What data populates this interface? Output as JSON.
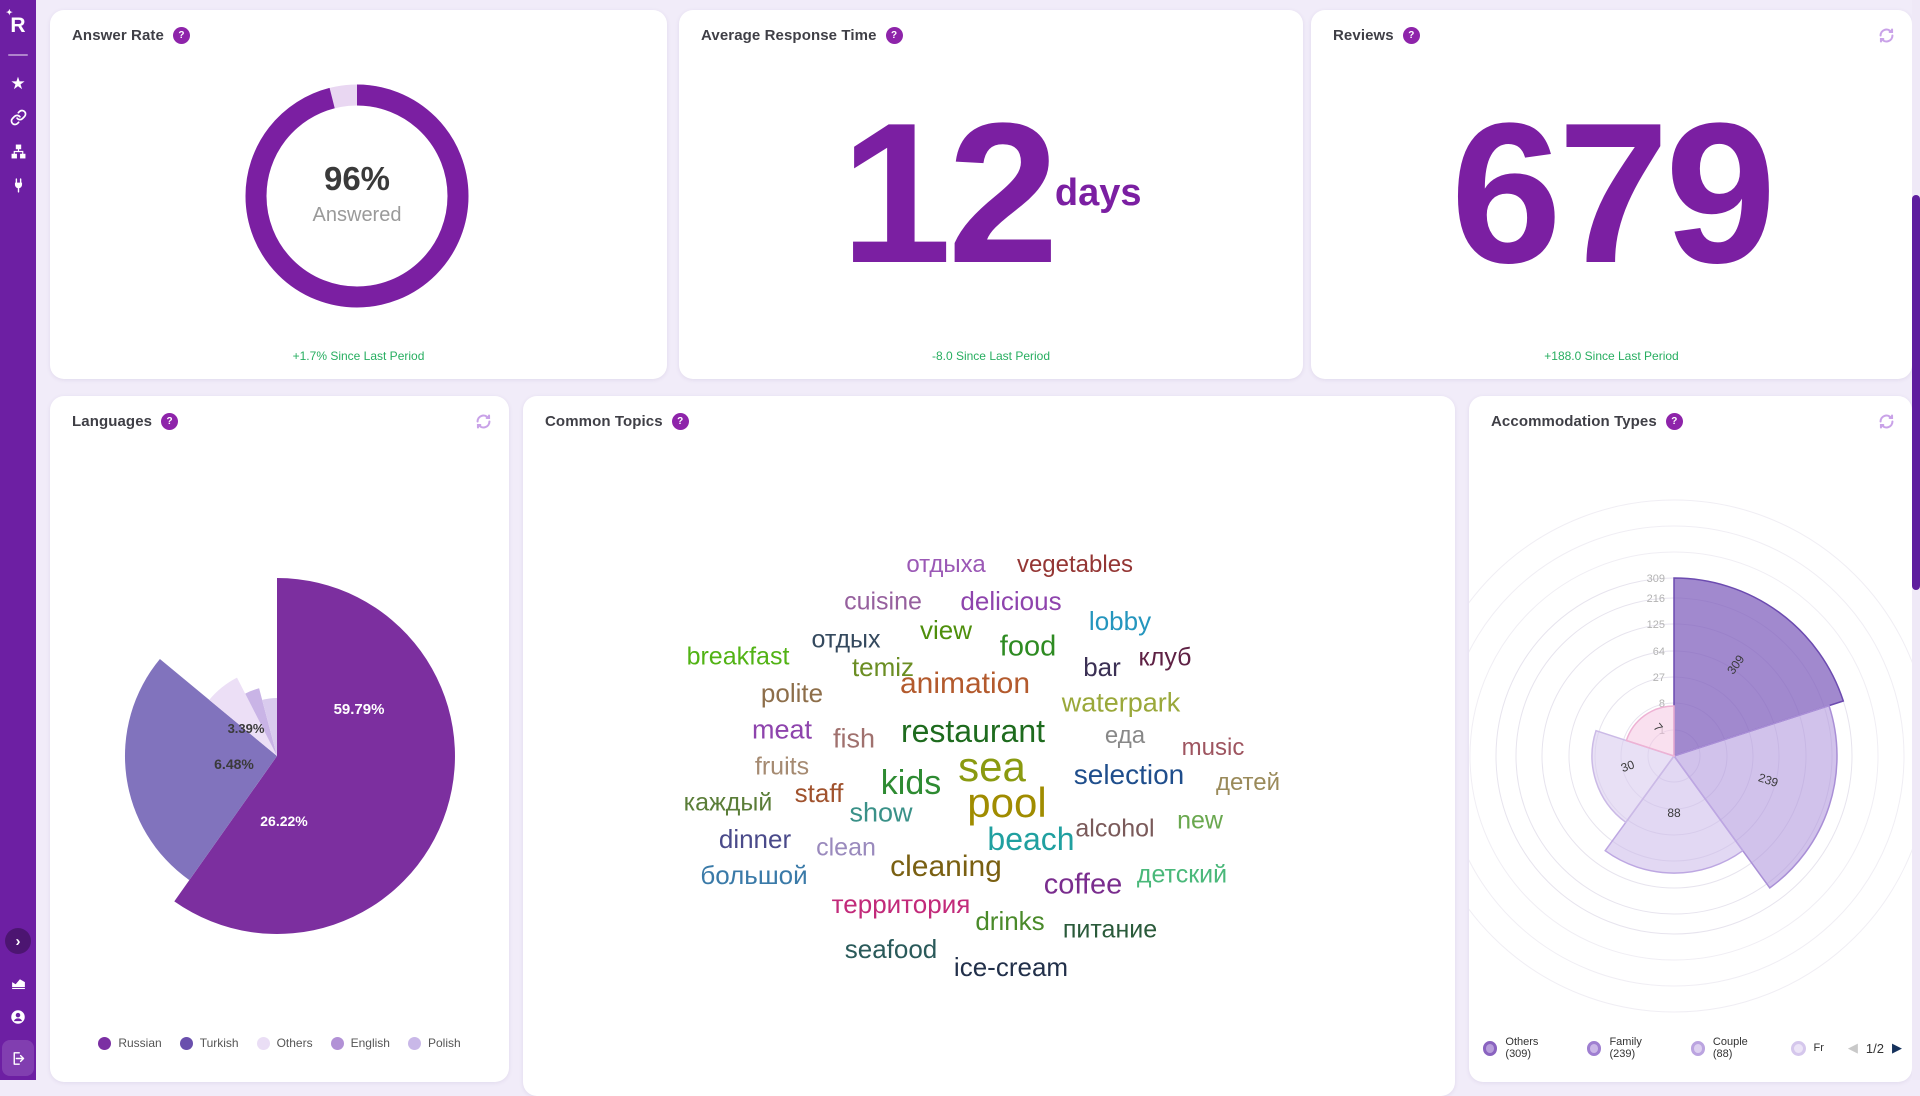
{
  "colors": {
    "accent": "#7b1fa2",
    "sidebar": "#6d1fa3",
    "positive_delta": "#27ae60",
    "page_bg": "#f1ecf9",
    "help_badge": "#8e24aa",
    "refresh_icon": "#c9a2e8",
    "scroll_thumb": "#5e1d9e"
  },
  "ui": {
    "help_glyph": "?",
    "collapse_glyph": "›",
    "prev_glyph": "◀",
    "next_glyph": "▶"
  },
  "sidebar": {
    "icons": [
      "star-icon",
      "link-icon",
      "sitemap-icon",
      "plug-icon"
    ],
    "bottom_icons": [
      "collapse-chevron-icon",
      "area-chart-icon",
      "user-icon",
      "sign-out-icon"
    ]
  },
  "cards": {
    "answer_rate": {
      "title": "Answer Rate",
      "center_value": "96%",
      "center_label": "Answered",
      "delta": "+1.7% Since Last Period"
    },
    "average_response_time": {
      "title": "Average Response Time",
      "value": "12",
      "unit": "days",
      "delta": "-8.0 Since Last Period"
    },
    "reviews": {
      "title": "Reviews",
      "value": "679",
      "delta": "+188.0 Since Last Period"
    },
    "languages": {
      "title": "Languages",
      "legend": [
        {
          "label": "Russian",
          "color": "#7b2fa3"
        },
        {
          "label": "Turkish",
          "color": "#6a4fad"
        },
        {
          "label": "Others",
          "color": "#eadef5"
        },
        {
          "label": "English",
          "color": "#b291d6"
        },
        {
          "label": "Polish",
          "color": "#c9b8e8"
        }
      ]
    },
    "common_topics": {
      "title": "Common Topics"
    },
    "accommodation_types": {
      "title": "Accommodation Types",
      "legend": [
        {
          "label": "Others (309)",
          "ring": "#8a63c0",
          "fill": "#b79ddb"
        },
        {
          "label": "Family (239)",
          "ring": "#9f7fd1",
          "fill": "#cbb7e8"
        },
        {
          "label": "Couple (88)",
          "ring": "#bba4e0",
          "fill": "#ddd0f0"
        },
        {
          "label": "Fr",
          "ring": "#d5c7ec",
          "fill": "#ece4f7"
        }
      ],
      "pagination": {
        "label": "1/2"
      }
    }
  },
  "chart_data": [
    {
      "id": "answer-rate-donut",
      "type": "pie",
      "title": "Answer Rate",
      "values": [
        {
          "name": "Answered",
          "value": 96
        },
        {
          "name": "Remainder",
          "value": 4
        }
      ],
      "colors": [
        "#7b1fa2",
        "#e9d7f2"
      ],
      "center": {
        "x": 307,
        "y": 186
      },
      "radius": 101,
      "thickness": 21,
      "center_label": "96%",
      "sub_label": "Answered"
    },
    {
      "id": "languages-pie",
      "type": "pie",
      "title": "Languages",
      "subtype": "rose",
      "center": {
        "x": 227,
        "y": 360
      },
      "series": [
        {
          "name": "Russian",
          "percent": 59.79,
          "label": "59.79%",
          "radius": 178,
          "color": "#7c2f9f",
          "label_pos": [
            309,
            318
          ],
          "label_color": "#ffffff",
          "label_size": 15
        },
        {
          "name": "Turkish",
          "percent": 26.22,
          "label": "26.22%",
          "radius": 152,
          "color": "#8173bd",
          "label_pos": [
            234,
            430
          ],
          "label_color": "#ffffff",
          "label_size": 14
        },
        {
          "name": "Others",
          "percent": 6.48,
          "label": "6.48%",
          "radius": 88,
          "color": "#ecdff6",
          "label_pos": [
            184,
            373
          ],
          "label_color": "#3a3a3a",
          "label_size": 14
        },
        {
          "name": "English",
          "percent": 3.39,
          "label": "3.39%",
          "radius": 70,
          "color": "#c9b4e6",
          "label_pos": [
            196,
            337
          ],
          "label_color": "#3a3a3a",
          "label_size": 13
        },
        {
          "name": "Polish",
          "percent": null,
          "label": "",
          "radius": 58,
          "color": "#d9cbee",
          "label_pos": null,
          "label_color": null,
          "label_size": null
        }
      ]
    },
    {
      "id": "topics-wordcloud",
      "type": "wordcloud",
      "title": "Common Topics",
      "columns": [
        "text",
        "x",
        "y",
        "font_px",
        "color"
      ],
      "words": [
        [
          "отдыха",
          423,
          169,
          24,
          "#9b59b6"
        ],
        [
          "vegetables",
          552,
          169,
          24,
          "#943634"
        ],
        [
          "cuisine",
          360,
          206,
          25,
          "#96609e"
        ],
        [
          "delicious",
          488,
          205,
          26,
          "#8e44ad"
        ],
        [
          "lobby",
          597,
          225,
          26,
          "#2596be"
        ],
        [
          "view",
          423,
          234,
          26,
          "#4e8f0c"
        ],
        [
          "отдых",
          323,
          244,
          25,
          "#34495e"
        ],
        [
          "food",
          505,
          251,
          29,
          "#2e8b22"
        ],
        [
          "breakfast",
          215,
          261,
          25,
          "#52b315"
        ],
        [
          "temiz",
          360,
          271,
          26,
          "#6b8e23"
        ],
        [
          "клуб",
          642,
          262,
          25,
          "#5e2144"
        ],
        [
          "bar",
          579,
          271,
          26,
          "#3b3054"
        ],
        [
          "polite",
          269,
          297,
          26,
          "#8d6e4a"
        ],
        [
          "animation",
          442,
          288,
          30,
          "#b35a2d"
        ],
        [
          "waterpark",
          598,
          307,
          27,
          "#9aa83a"
        ],
        [
          "meat",
          259,
          334,
          27,
          "#8e44ad"
        ],
        [
          "fish",
          331,
          343,
          27,
          "#a0716e"
        ],
        [
          "restaurant",
          450,
          335,
          32,
          "#1e6b1e"
        ],
        [
          "еда",
          602,
          340,
          24,
          "#888888"
        ],
        [
          "music",
          690,
          352,
          24,
          "#9e5560"
        ],
        [
          "fruits",
          259,
          371,
          25,
          "#a58a71"
        ],
        [
          "sea",
          469,
          371,
          42,
          "#8a9a10"
        ],
        [
          "selection",
          606,
          379,
          28,
          "#1f4e8c"
        ],
        [
          "детей",
          725,
          387,
          24,
          "#9a8a5a"
        ],
        [
          "staff",
          296,
          397,
          26,
          "#a0522d"
        ],
        [
          "kids",
          388,
          387,
          34,
          "#2e8b32"
        ],
        [
          "pool",
          484,
          407,
          42,
          "#a08c00"
        ],
        [
          "show",
          358,
          417,
          27,
          "#3a9188"
        ],
        [
          "alcohol",
          592,
          433,
          25,
          "#7a5a5a"
        ],
        [
          "new",
          677,
          425,
          25,
          "#6aa84f"
        ],
        [
          "каждый",
          205,
          407,
          25,
          "#5a7d38"
        ],
        [
          "dinner",
          232,
          443,
          26,
          "#4a4a8a"
        ],
        [
          "clean",
          323,
          452,
          25,
          "#9a8abd"
        ],
        [
          "beach",
          508,
          443,
          32,
          "#20a0a0"
        ],
        [
          "большой",
          231,
          479,
          26,
          "#3a7aa8"
        ],
        [
          "cleaning",
          423,
          471,
          30,
          "#7a6012"
        ],
        [
          "детский",
          659,
          479,
          25,
          "#4ab87a"
        ],
        [
          "coffee",
          560,
          489,
          29,
          "#7a2d8e"
        ],
        [
          "территория",
          378,
          508,
          26,
          "#c22a7a"
        ],
        [
          "drinks",
          487,
          525,
          26,
          "#4a8a2a"
        ],
        [
          "питание",
          587,
          534,
          25,
          "#2a5a3a"
        ],
        [
          "seafood",
          368,
          553,
          26,
          "#2a5a5a"
        ],
        [
          "ice-cream",
          488,
          571,
          26,
          "#22304a"
        ]
      ]
    },
    {
      "id": "accommodation-rose",
      "type": "pie",
      "subtype": "nightingale-rose",
      "title": "Accommodation Types",
      "center": {
        "x": 205,
        "y": 360
      },
      "slice_angle_deg": 72,
      "ticks": [
        {
          "label": "309",
          "r": 178
        },
        {
          "label": "216",
          "r": 158
        },
        {
          "label": "125",
          "r": 132
        },
        {
          "label": "64",
          "r": 105
        },
        {
          "label": "27",
          "r": 79
        },
        {
          "label": "8",
          "r": 53
        },
        {
          "label": "1",
          "r": 26
        }
      ],
      "extra_rings": [
        204,
        230,
        256
      ],
      "slices": [
        {
          "label": "309",
          "value": 309,
          "r": 178,
          "fill": "rgba(130,98,190,0.75)",
          "stroke": "#6c4bb0",
          "label_pos": [
            270,
            271
          ],
          "rotate": -54
        },
        {
          "label": "239",
          "value": 239,
          "r": 163,
          "fill": "rgba(178,153,222,0.60)",
          "stroke": "#a98fd6",
          "label_pos": [
            298,
            388
          ],
          "rotate": 18
        },
        {
          "label": "88",
          "value": 88,
          "r": 117,
          "fill": "rgba(203,184,233,0.55)",
          "stroke": "#bda7e2",
          "label_pos": [
            205,
            421
          ],
          "rotate": 0
        },
        {
          "label": "30",
          "value": 30,
          "r": 82,
          "fill": "rgba(216,203,238,0.60)",
          "stroke": "#cbbae6",
          "label_pos": [
            160,
            374
          ],
          "rotate": -20
        },
        {
          "label": "7",
          "value": 7,
          "r": 50,
          "fill": "rgba(244,193,224,0.50)",
          "stroke": "#eeb2d4",
          "label_pos": [
            186,
            334
          ],
          "rotate": 50
        }
      ]
    }
  ]
}
